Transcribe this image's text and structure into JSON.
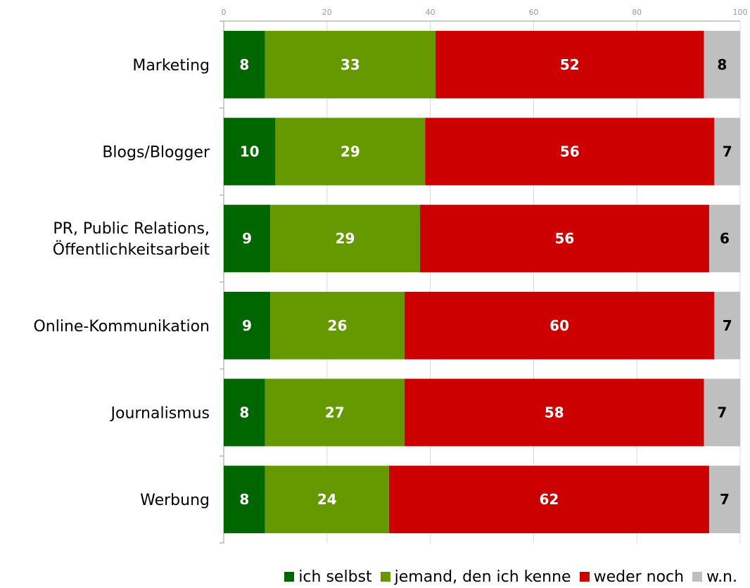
{
  "chart_data": {
    "type": "bar",
    "orientation": "horizontal",
    "stacked": true,
    "categories": [
      "Marketing",
      "Blogs/Blogger",
      "PR, Public Relations, Öffentlichkeitsarbeit",
      "Online-Kommunikation",
      "Journalismus",
      "Werbung"
    ],
    "category_lines": [
      [
        "Marketing"
      ],
      [
        "Blogs/Blogger"
      ],
      [
        "PR, Public Relations,",
        "Öffentlichkeitsarbeit"
      ],
      [
        "Online-Kommunikation"
      ],
      [
        "Journalismus"
      ],
      [
        "Werbung"
      ]
    ],
    "series": [
      {
        "name": "ich selbst",
        "color": "#006600",
        "label_color": "#ffffff",
        "values": [
          8,
          10,
          9,
          9,
          8,
          8
        ]
      },
      {
        "name": "jemand, den ich kenne",
        "color": "#669900",
        "label_color": "#ffffff",
        "values": [
          33,
          29,
          29,
          26,
          27,
          24
        ]
      },
      {
        "name": "weder noch",
        "color": "#cc0000",
        "label_color": "#ffffff",
        "values": [
          52,
          56,
          56,
          60,
          58,
          62
        ]
      },
      {
        "name": "w.n.",
        "color": "#bfbfbf",
        "label_color": "#000000",
        "values": [
          8,
          7,
          6,
          7,
          7,
          7
        ]
      }
    ],
    "xlim": [
      0,
      100
    ],
    "xticks": [
      0,
      20,
      40,
      60,
      80,
      100
    ],
    "axis_position": "top",
    "grid": true,
    "legend_position": "bottom-right",
    "data_labels": true
  }
}
